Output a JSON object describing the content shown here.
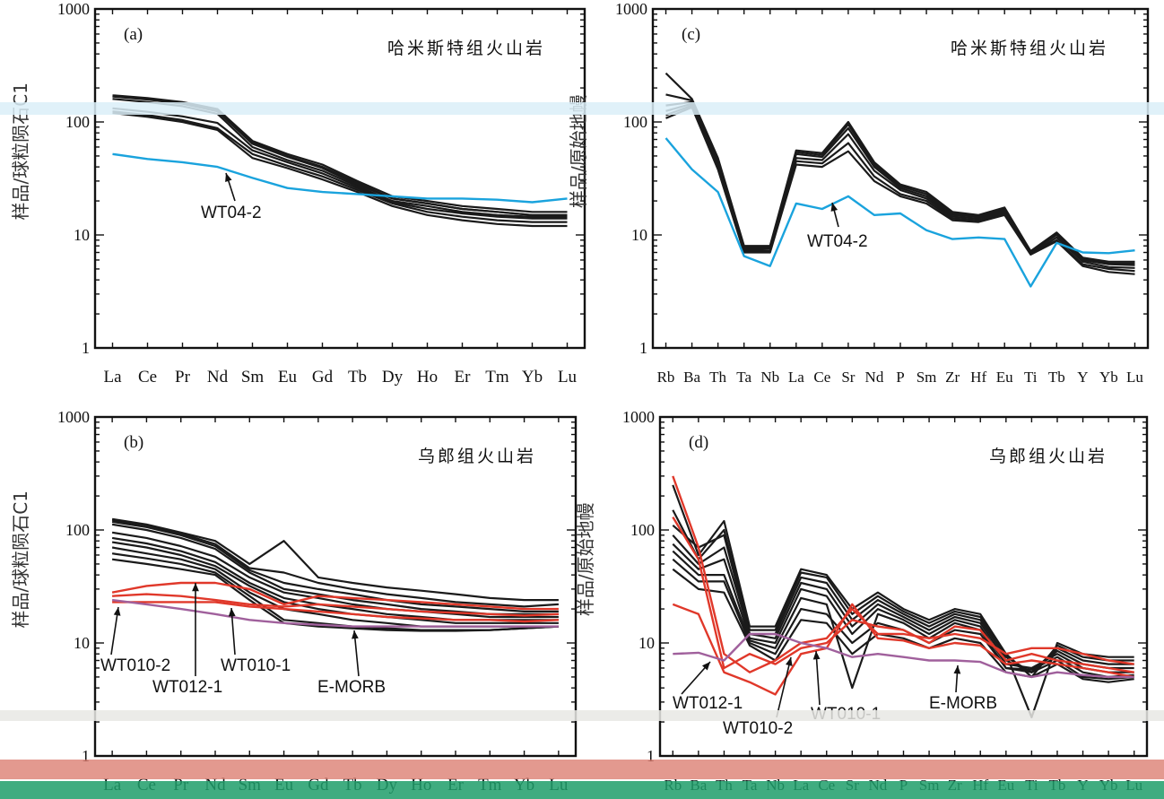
{
  "figure": {
    "colors": {
      "sample_black": "#1a1a1a",
      "highlight_blue": "#1aa3dd",
      "highlight_red": "#e0382a",
      "emorb_purple": "#a0609c",
      "axis": "#111111",
      "scan_band_blue": "#dbeef8",
      "scan_band_gray": "#e8e8e4",
      "scan_band_red": "#d9776a",
      "scan_band_green": "#1e9e6a"
    }
  },
  "chart_data": [
    {
      "id": "a",
      "type": "line",
      "panel_label": "(a)",
      "title": "哈米斯特组火山岩",
      "ylabel": "样品/球粒陨石C1",
      "yscale": "log",
      "ylim": [
        1,
        1000
      ],
      "yticks": [
        "1",
        "10",
        "100",
        "1000"
      ],
      "categories": [
        "La",
        "Ce",
        "Pr",
        "Nd",
        "Sm",
        "Eu",
        "Gd",
        "Tb",
        "Dy",
        "Ho",
        "Er",
        "Tm",
        "Yb",
        "Lu"
      ],
      "series": [
        {
          "color": "black",
          "values": [
            172,
            163,
            150,
            130,
            68,
            52,
            42,
            30,
            22,
            20,
            18,
            17,
            16,
            16
          ]
        },
        {
          "color": "black",
          "values": [
            170,
            160,
            147,
            127,
            66,
            50,
            40,
            29,
            21,
            19,
            17,
            16,
            15,
            15
          ]
        },
        {
          "color": "black",
          "values": [
            168,
            158,
            145,
            124,
            64,
            49,
            39,
            28,
            21,
            19,
            17,
            16,
            15,
            15
          ]
        },
        {
          "color": "black",
          "values": [
            160,
            150,
            138,
            118,
            60,
            46,
            37,
            27,
            20,
            18,
            16,
            15,
            14.5,
            14.5
          ]
        },
        {
          "color": "black",
          "values": [
            132,
            123,
            112,
            98,
            56,
            44,
            35,
            26,
            19.5,
            17,
            15.5,
            14.5,
            14,
            14
          ]
        },
        {
          "color": "black",
          "values": [
            124,
            115,
            104,
            88,
            52,
            41,
            33,
            25,
            19,
            16,
            14.5,
            13.5,
            13,
            13
          ]
        },
        {
          "color": "black",
          "values": [
            120,
            111,
            100,
            85,
            48,
            39,
            31,
            24,
            18,
            15,
            13.5,
            12.5,
            12,
            12
          ]
        },
        {
          "name": "WT04-2",
          "color": "blue",
          "values": [
            52,
            47,
            44,
            40,
            32,
            26,
            24,
            23,
            22,
            21,
            21,
            20.5,
            19.5,
            21
          ]
        }
      ],
      "annotations": [
        {
          "text": "WT04-2",
          "target_series": "WT04-2"
        }
      ]
    },
    {
      "id": "c",
      "type": "line",
      "panel_label": "(c)",
      "title": "哈米斯特组火山岩",
      "ylabel": "样品/原始地幔",
      "yscale": "log",
      "ylim": [
        1,
        1000
      ],
      "yticks": [
        "1",
        "10",
        "100",
        "1000"
      ],
      "categories": [
        "Rb",
        "Ba",
        "Th",
        "Ta",
        "Nb",
        "La",
        "Ce",
        "Sr",
        "Nd",
        "P",
        "Sm",
        "Zr",
        "Hf",
        "Eu",
        "Ti",
        "Tb",
        "Y",
        "Yb",
        "Lu"
      ],
      "tick_text": "RbBa Th Ta NbLa Ce Sr Nd P Sm Zr Hf Eu Ti Tb Y YbLu",
      "series": [
        {
          "color": "black",
          "values": [
            270,
            160,
            48,
            8,
            8,
            56,
            53,
            100,
            44,
            28,
            24,
            16,
            15,
            17.5,
            7.2,
            10.5,
            6.3,
            5.8,
            5.8
          ]
        },
        {
          "color": "black",
          "values": [
            175,
            155,
            46,
            7.8,
            7.8,
            54,
            51,
            95,
            42,
            27,
            23,
            15.5,
            14.8,
            17,
            7.0,
            10.2,
            6.1,
            5.6,
            5.6
          ]
        },
        {
          "color": "black",
          "values": [
            140,
            150,
            44,
            7.6,
            7.6,
            52,
            49,
            88,
            40,
            26,
            22,
            15,
            14.5,
            16.5,
            7.0,
            10,
            6,
            5.5,
            5.4
          ]
        },
        {
          "color": "black",
          "values": [
            125,
            145,
            42,
            7.4,
            7.5,
            48,
            46,
            78,
            37,
            25,
            21,
            14.5,
            14,
            16,
            6.8,
            9.5,
            5.8,
            5.2,
            5.1
          ]
        },
        {
          "color": "black",
          "values": [
            115,
            140,
            40,
            7.2,
            7.2,
            45,
            43,
            65,
            33,
            23,
            20,
            14,
            13.5,
            15.5,
            6.8,
            9.0,
            5.5,
            5.0,
            4.8
          ]
        },
        {
          "color": "black",
          "values": [
            108,
            135,
            38,
            7.0,
            7.0,
            42,
            40,
            55,
            30,
            22,
            19,
            13.5,
            13,
            15,
            6.7,
            8.8,
            5.3,
            4.7,
            4.5
          ]
        },
        {
          "name": "WT04-2",
          "color": "blue",
          "values": [
            72,
            38,
            24,
            6.5,
            5.3,
            19,
            17,
            22,
            15,
            15.5,
            11,
            9.2,
            9.5,
            9.2,
            3.5,
            8.5,
            7.0,
            6.9,
            7.3
          ]
        }
      ],
      "annotations": [
        {
          "text": "WT04-2",
          "target_series": "WT04-2"
        }
      ]
    },
    {
      "id": "b",
      "type": "line",
      "panel_label": "(b)",
      "title": "乌郎组火山岩",
      "ylabel": "样品/球粒陨石C1",
      "yscale": "log",
      "ylim": [
        1,
        1000
      ],
      "yticks": [
        "1",
        "10",
        "100",
        "1000"
      ],
      "categories": [
        "La",
        "Ce",
        "Pr",
        "Nd",
        "Sm",
        "Eu",
        "Gd",
        "Tb",
        "Dy",
        "Ho",
        "Er",
        "Tm",
        "Yb",
        "Lu"
      ],
      "tick_text": "La Ce Pr Nd Sm Eu Gd Tb Dy Ho Er Tm Yb Lu",
      "series": [
        {
          "color": "black",
          "values": [
            125,
            112,
            95,
            80,
            50,
            80,
            38,
            34,
            31,
            29,
            27,
            25,
            24,
            24
          ]
        },
        {
          "color": "black",
          "values": [
            122,
            110,
            93,
            75,
            46,
            42,
            34,
            30,
            27,
            25,
            23,
            22,
            21,
            22
          ]
        },
        {
          "color": "black",
          "values": [
            118,
            106,
            90,
            72,
            44,
            34,
            30,
            27,
            24,
            22,
            21,
            20,
            19,
            19
          ]
        },
        {
          "color": "black",
          "values": [
            112,
            100,
            85,
            68,
            42,
            30,
            27,
            24,
            22,
            20,
            19,
            18,
            18,
            18
          ]
        },
        {
          "color": "black",
          "values": [
            95,
            85,
            72,
            58,
            38,
            28,
            25,
            22,
            20,
            19,
            18,
            17,
            17,
            17
          ]
        },
        {
          "color": "black",
          "values": [
            85,
            76,
            65,
            52,
            34,
            25,
            22,
            20,
            18,
            17,
            16,
            16,
            16,
            16
          ]
        },
        {
          "color": "black",
          "values": [
            78,
            70,
            60,
            48,
            32,
            23,
            20,
            18,
            17,
            16,
            15,
            15,
            15,
            15
          ]
        },
        {
          "color": "black",
          "values": [
            70,
            62,
            55,
            45,
            28,
            20,
            18,
            16,
            15,
            14,
            14,
            14,
            14,
            14
          ]
        },
        {
          "color": "black",
          "values": [
            62,
            56,
            50,
            42,
            26,
            16,
            15,
            14,
            13.5,
            13,
            13,
            13,
            13.5,
            14
          ]
        },
        {
          "color": "black",
          "values": [
            55,
            50,
            45,
            40,
            24,
            15,
            14,
            13.5,
            13,
            12.8,
            12.8,
            13,
            13.5,
            14
          ]
        },
        {
          "name": "WT012-1",
          "color": "red",
          "values": [
            28,
            32,
            34,
            34,
            30,
            22,
            26,
            25,
            24,
            23,
            22,
            21,
            20,
            20
          ]
        },
        {
          "name": "WT010-1",
          "color": "red",
          "values": [
            26,
            27,
            26,
            24,
            22,
            21,
            22,
            21,
            20,
            19,
            18.5,
            18,
            17.5,
            18
          ]
        },
        {
          "name": "WT010-2",
          "color": "red",
          "values": [
            23,
            23,
            23,
            23,
            21,
            20,
            19,
            18,
            17,
            16.5,
            16,
            16,
            15.5,
            16
          ]
        },
        {
          "name": "E-MORB",
          "color": "purple",
          "values": [
            24,
            22,
            20,
            18,
            16,
            15,
            14.5,
            14,
            14,
            14,
            14,
            14,
            14,
            14
          ]
        }
      ],
      "annotations": [
        {
          "text": "WT010-2",
          "target_series": "WT010-2"
        },
        {
          "text": "WT012-1",
          "target_series": "WT012-1"
        },
        {
          "text": "WT010-1",
          "target_series": "WT010-1"
        },
        {
          "text": "E-MORB",
          "target_series": "E-MORB"
        }
      ]
    },
    {
      "id": "d",
      "type": "line",
      "panel_label": "(d)",
      "title": "乌郎组火山岩",
      "ylabel": "样品/原始地幔",
      "yscale": "log",
      "ylim": [
        1,
        1000
      ],
      "yticks": [
        "1",
        "10",
        "100",
        "1000"
      ],
      "categories": [
        "Rb",
        "Ba",
        "Th",
        "Ta",
        "Nb",
        "La",
        "Ce",
        "Sr",
        "Nd",
        "P",
        "Sm",
        "Zr",
        "Hf",
        "Eu",
        "Ti",
        "Tb",
        "Y",
        "Yb",
        "Lu"
      ],
      "tick_text": "RbBaThTa NbLaCeSrNdP SmZrHfEuTiTb Y YbLu",
      "series": [
        {
          "color": "black",
          "values": [
            250,
            60,
            120,
            14,
            14,
            45,
            40,
            20,
            28,
            20,
            16,
            20,
            18,
            8,
            2.2,
            10,
            8,
            7.5,
            7.5
          ]
        },
        {
          "color": "black",
          "values": [
            150,
            55,
            100,
            13,
            13,
            42,
            38,
            18,
            26,
            19,
            15,
            19,
            17,
            8,
            5,
            9.5,
            7.5,
            7,
            7
          ]
        },
        {
          "color": "black",
          "values": [
            110,
            70,
            90,
            12,
            12,
            38,
            34,
            16,
            24,
            18,
            14,
            18,
            16,
            7.5,
            5.5,
            9,
            7,
            6.5,
            6.5
          ]
        },
        {
          "color": "black",
          "values": [
            90,
            50,
            70,
            12,
            11,
            34,
            30,
            14,
            22,
            17,
            13,
            17,
            15,
            7,
            5.5,
            8.5,
            6.5,
            6,
            6
          ]
        },
        {
          "color": "black",
          "values": [
            75,
            45,
            55,
            11,
            10,
            30,
            26,
            12,
            20,
            16,
            12,
            16,
            14,
            6.5,
            6,
            8,
            6,
            5.5,
            5.5
          ]
        },
        {
          "color": "black",
          "values": [
            65,
            40,
            40,
            10.5,
            9,
            25,
            22,
            4,
            18,
            15,
            11,
            15,
            13,
            6,
            5.8,
            7.5,
            5.5,
            5,
            5.2
          ]
        },
        {
          "color": "black",
          "values": [
            55,
            35,
            35,
            10,
            8,
            20,
            18,
            10,
            15,
            13,
            10,
            13,
            12,
            6,
            5.5,
            7,
            5,
            4.8,
            5
          ]
        },
        {
          "color": "black",
          "values": [
            45,
            30,
            28,
            9.5,
            7,
            16,
            15,
            8,
            12,
            11,
            9,
            11,
            10,
            5.5,
            5,
            6.5,
            4.8,
            4.5,
            4.8
          ]
        },
        {
          "name": "WT012-1",
          "color": "red",
          "values": [
            300,
            70,
            8,
            5.5,
            7,
            10,
            11,
            20,
            12,
            12,
            11,
            12,
            11,
            8,
            9,
            9,
            8,
            7,
            6.5
          ]
        },
        {
          "name": "WT010-2",
          "color": "red",
          "values": [
            130,
            55,
            6,
            8,
            6.5,
            9,
            10,
            16,
            14,
            13,
            10,
            14,
            13,
            7,
            8,
            7,
            6.5,
            6,
            5.5
          ]
        },
        {
          "name": "WT010-1",
          "color": "red",
          "values": [
            22,
            18,
            5.5,
            4.5,
            3.5,
            8,
            9,
            22,
            11,
            10.5,
            9,
            10,
            9.5,
            6.5,
            7,
            6.5,
            6,
            5.5,
            5
          ]
        },
        {
          "name": "E-MORB",
          "color": "purple",
          "values": [
            8,
            8.2,
            7,
            12,
            12,
            10,
            9,
            7.5,
            8,
            7.5,
            7,
            7,
            6.8,
            5.5,
            5,
            5.5,
            5.2,
            5,
            5
          ]
        }
      ],
      "annotations": [
        {
          "text": "WT012-1",
          "target_series": "WT012-1"
        },
        {
          "text": "WT010-2",
          "target_series": "WT010-2"
        },
        {
          "text": "WT010-1",
          "target_series": "WT010-1"
        },
        {
          "text": "E-MORB",
          "target_series": "E-MORB"
        }
      ]
    }
  ]
}
